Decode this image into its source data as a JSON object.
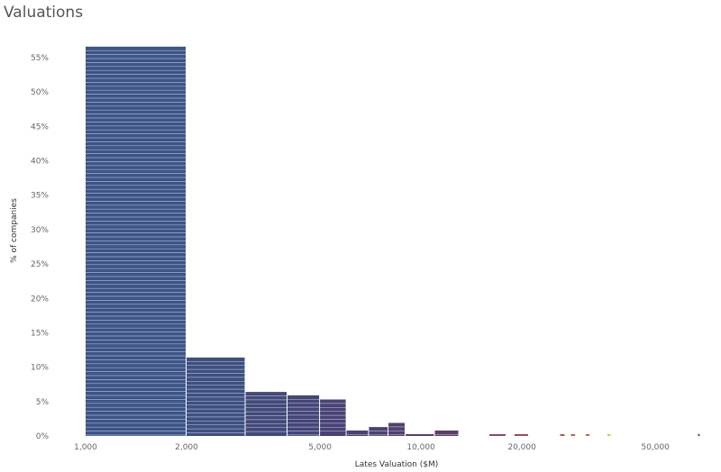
{
  "title": "Valuations",
  "chart_data": {
    "type": "bar",
    "title": "Valuations",
    "xlabel": "Lates Valuation ($M)",
    "ylabel": "% of companies",
    "x_scale": "log",
    "xlim": [
      1000,
      70000
    ],
    "ylim": [
      0,
      57
    ],
    "x_ticks": [
      {
        "value": 1000,
        "label": "1,000"
      },
      {
        "value": 2000,
        "label": "2,000"
      },
      {
        "value": 5000,
        "label": "5,000"
      },
      {
        "value": 10000,
        "label": "10,000"
      },
      {
        "value": 20000,
        "label": "20,000"
      },
      {
        "value": 50000,
        "label": "50,000"
      }
    ],
    "y_ticks": [
      {
        "value": 0,
        "label": "0%"
      },
      {
        "value": 5,
        "label": "5%"
      },
      {
        "value": 10,
        "label": "10%"
      },
      {
        "value": 15,
        "label": "15%"
      },
      {
        "value": 20,
        "label": "20%"
      },
      {
        "value": 25,
        "label": "25%"
      },
      {
        "value": 30,
        "label": "30%"
      },
      {
        "value": 35,
        "label": "35%"
      },
      {
        "value": 40,
        "label": "40%"
      },
      {
        "value": 45,
        "label": "45%"
      },
      {
        "value": 50,
        "label": "50%"
      },
      {
        "value": 55,
        "label": "55%"
      }
    ],
    "grid": false,
    "bins": [
      {
        "x0": 1000,
        "x1": 2000,
        "value": 56.6,
        "color": "#3c5488"
      },
      {
        "x0": 2000,
        "x1": 3000,
        "value": 11.4,
        "color": "#3e4f80"
      },
      {
        "x0": 3000,
        "x1": 4000,
        "value": 6.4,
        "color": "#414a7a"
      },
      {
        "x0": 4000,
        "x1": 5000,
        "value": 5.9,
        "color": "#444678"
      },
      {
        "x0": 5000,
        "x1": 6000,
        "value": 5.3,
        "color": "#474376"
      },
      {
        "x0": 6000,
        "x1": 7000,
        "value": 0.8,
        "color": "#4a4274"
      },
      {
        "x0": 7000,
        "x1": 8000,
        "value": 1.3,
        "color": "#4d4172"
      },
      {
        "x0": 8000,
        "x1": 9000,
        "value": 1.9,
        "color": "#514070"
      },
      {
        "x0": 9000,
        "x1": 11000,
        "value": 0.2,
        "color": "#56406e"
      },
      {
        "x0": 11000,
        "x1": 13000,
        "value": 0.8,
        "color": "#5c406c"
      },
      {
        "x0": 16000,
        "x1": 18000,
        "value": 0.2,
        "color": "#8f4a5f"
      },
      {
        "x0": 19000,
        "x1": 21000,
        "value": 0.2,
        "color": "#9b4e5a"
      },
      {
        "x0": 26000,
        "x1": 27000,
        "value": 0.2,
        "color": "#b25a52"
      },
      {
        "x0": 28000,
        "x1": 29000,
        "value": 0.2,
        "color": "#b8604f"
      },
      {
        "x0": 31000,
        "x1": 32000,
        "value": 0.2,
        "color": "#c06a4b"
      },
      {
        "x0": 36000,
        "x1": 37000,
        "value": 0.2,
        "color": "#e3c24a"
      },
      {
        "x0": 67000,
        "x1": 68000,
        "value": 0.3,
        "color": "#7a3f60"
      }
    ],
    "stripe_color": "#ffffff"
  }
}
